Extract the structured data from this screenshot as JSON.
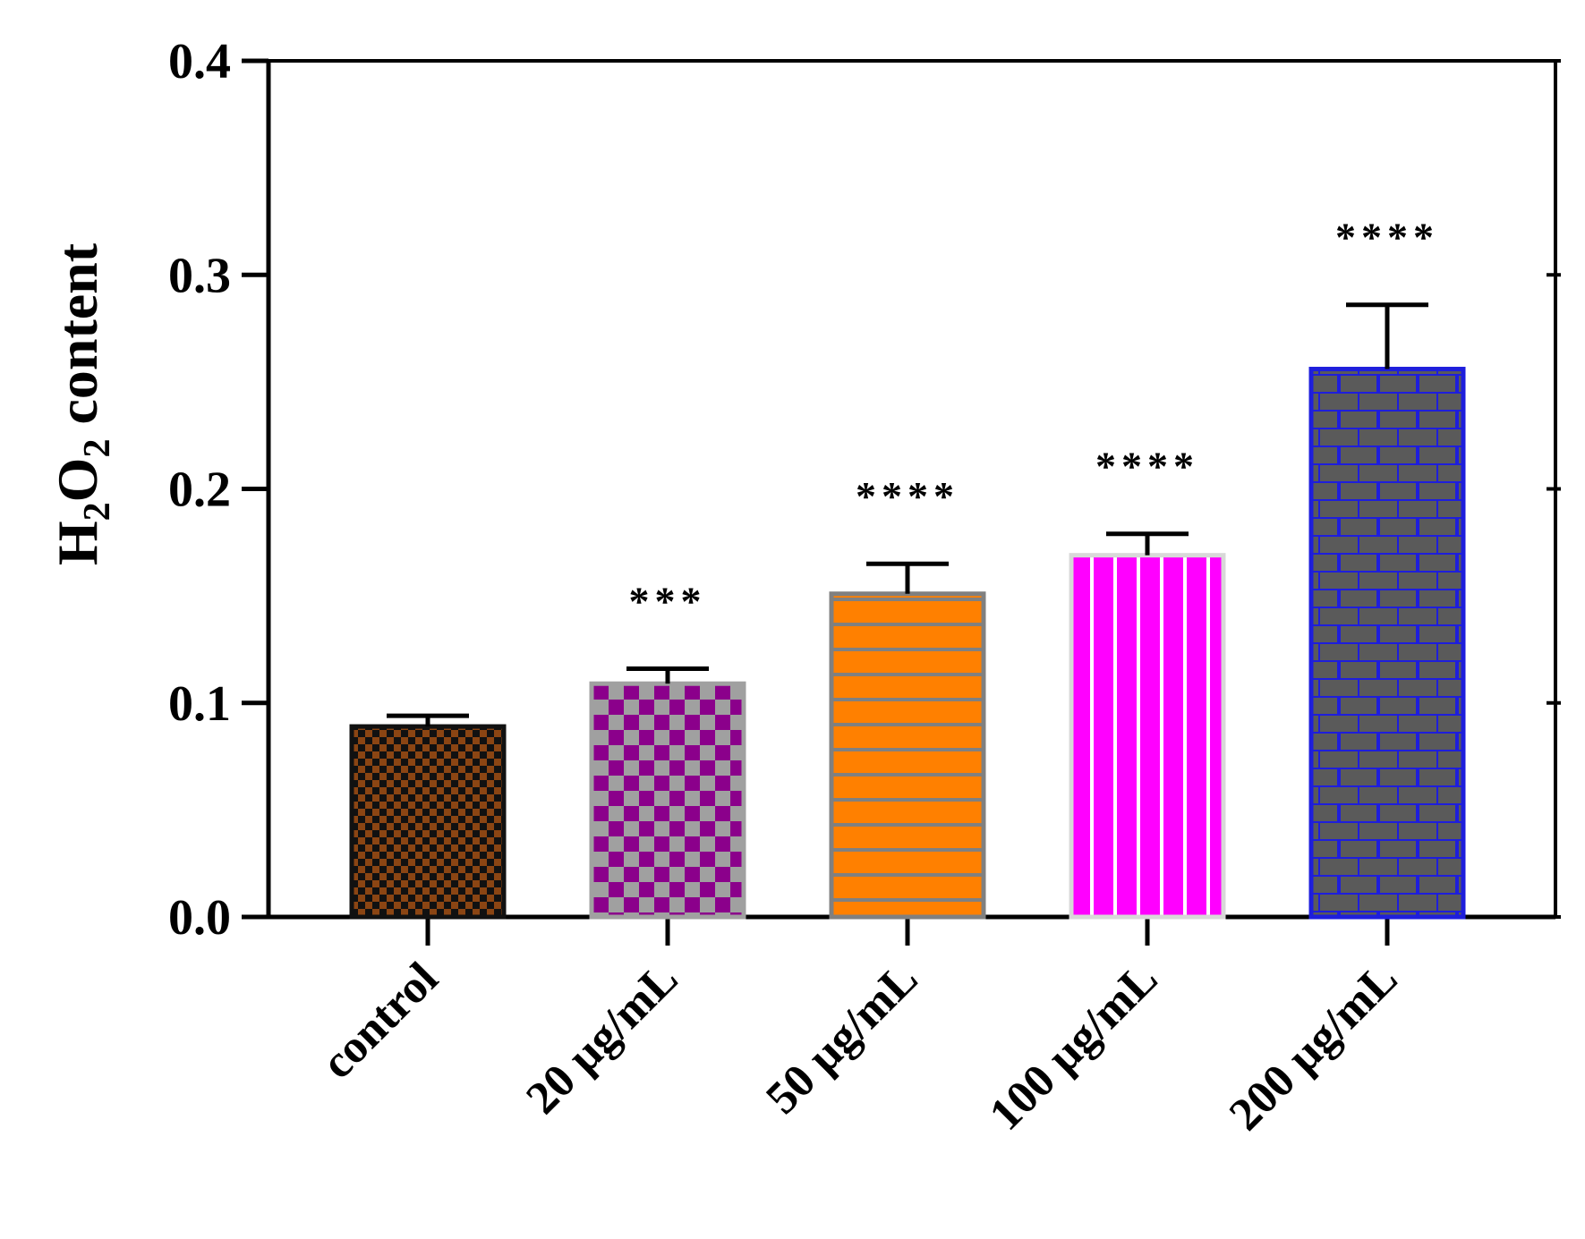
{
  "chart_data": {
    "type": "bar",
    "title": "",
    "xlabel": "",
    "ylabel": {
      "prefix": "H",
      "sub1": "2",
      "mid": "O",
      "sub2": "2",
      "suffix": " content"
    },
    "ylim": [
      0,
      0.4
    ],
    "yticks": [
      "0.0",
      "0.1",
      "0.2",
      "0.3",
      "0.4"
    ],
    "ytick_values": [
      0.0,
      0.1,
      0.2,
      0.3,
      0.4
    ],
    "categories": [
      "control",
      "20 µg/mL",
      "50 µg/mL",
      "100 µg/mL",
      "200 µg/mL"
    ],
    "values": [
      0.089,
      0.109,
      0.151,
      0.169,
      0.256
    ],
    "errors": [
      0.005,
      0.007,
      0.014,
      0.01,
      0.03
    ],
    "significance": [
      "",
      "***",
      "****",
      "****",
      "****"
    ],
    "grid": false,
    "bars": [
      {
        "pattern": "checker-brown",
        "fill": "#8B4513",
        "alt": "#111111",
        "border": "#111111"
      },
      {
        "pattern": "checker-purple",
        "fill": "#A0A0A0",
        "alt": "#8B008B",
        "border": "#A0A0A0"
      },
      {
        "pattern": "hlines-orange",
        "fill": "#FF8000",
        "alt": "#808080",
        "border": "#808080"
      },
      {
        "pattern": "vlines-magenta",
        "fill": "#FF00FF",
        "alt": "#FFFFFF",
        "border": "#D8D8D8"
      },
      {
        "pattern": "brick-blue",
        "fill": "#5A5A5A",
        "alt": "#1E1EDC",
        "border": "#1E1EDC"
      }
    ]
  }
}
